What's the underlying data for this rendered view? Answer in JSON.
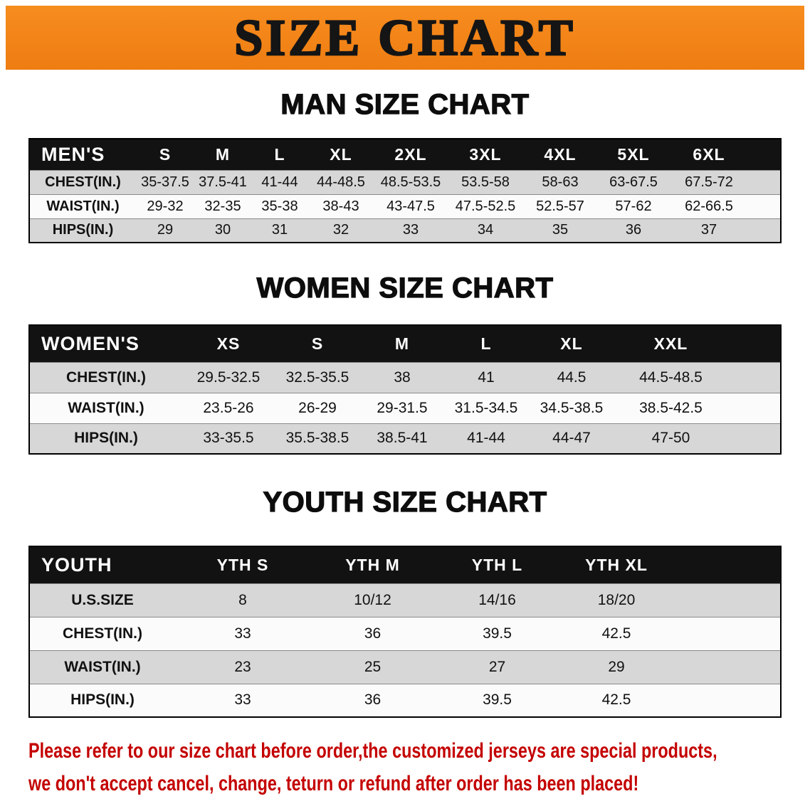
{
  "theme": {
    "banner-bg": "#f78c1f",
    "banner-bg-dark": "#ee7d12",
    "header-bg": "#121212",
    "row-alt": "#d7d7d7",
    "row-base": "#fbfbfb",
    "text-dark": "#111111",
    "footer-red": "#c40000",
    "border-dark": "#000000",
    "table-line": "#8a8a8a"
  },
  "banner": {
    "title": "SIZE CHART"
  },
  "sections": [
    {
      "id": "men",
      "heading": "MAN SIZE CHART",
      "table": {
        "header": [
          "MEN'S",
          "S",
          "M",
          "L",
          "XL",
          "2XL",
          "3XL",
          "4XL",
          "5XL",
          "6XL"
        ],
        "rows": [
          [
            "CHEST(IN.)",
            "35-37.5",
            "37.5-41",
            "41-44",
            "44-48.5",
            "48.5-53.5",
            "53.5-58",
            "58-63",
            "63-67.5",
            "67.5-72"
          ],
          [
            "WAIST(IN.)",
            "29-32",
            "32-35",
            "35-38",
            "38-43",
            "43-47.5",
            "47.5-52.5",
            "52.5-57",
            "57-62",
            "62-66.5"
          ],
          [
            "HIPS(IN.)",
            "29",
            "30",
            "31",
            "32",
            "33",
            "34",
            "35",
            "36",
            "37"
          ]
        ]
      }
    },
    {
      "id": "women",
      "heading": "WOMEN SIZE CHART",
      "table": {
        "header": [
          "WOMEN'S",
          "XS",
          "S",
          "M",
          "L",
          "XL",
          "XXL"
        ],
        "rows": [
          [
            "CHEST(IN.)",
            "29.5-32.5",
            "32.5-35.5",
            "38",
            "41",
            "44.5",
            "44.5-48.5"
          ],
          [
            "WAIST(IN.)",
            "23.5-26",
            "26-29",
            "29-31.5",
            "31.5-34.5",
            "34.5-38.5",
            "38.5-42.5"
          ],
          [
            "HIPS(IN.)",
            "33-35.5",
            "35.5-38.5",
            "38.5-41",
            "41-44",
            "44-47",
            "47-50"
          ]
        ]
      }
    },
    {
      "id": "youth",
      "heading": "YOUTH SIZE CHART",
      "table": {
        "header": [
          "YOUTH",
          "YTH S",
          "YTH M",
          "YTH L",
          "YTH XL"
        ],
        "rows": [
          [
            "U.S.SIZE",
            "8",
            "10/12",
            "14/16",
            "18/20"
          ],
          [
            "CHEST(IN.)",
            "33",
            "36",
            "39.5",
            "42.5"
          ],
          [
            "WAIST(IN.)",
            "23",
            "25",
            "27",
            "29"
          ],
          [
            "HIPS(IN.)",
            "33",
            "36",
            "39.5",
            "42.5"
          ]
        ]
      }
    }
  ],
  "footer": {
    "lines": [
      "Please refer to our size chart before order,the customized jerseys are special products,",
      "we don't accept cancel, change, teturn or refund after order has been placed!"
    ]
  }
}
